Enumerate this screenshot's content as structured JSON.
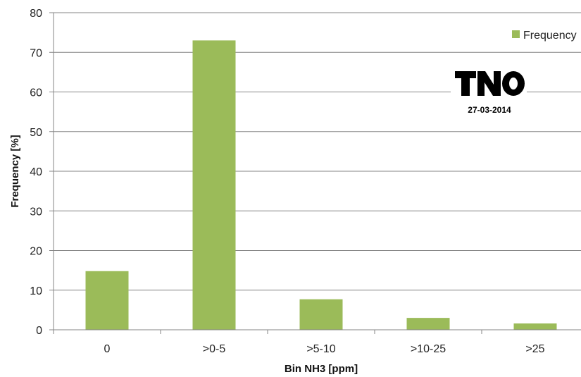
{
  "chart_data": {
    "type": "bar",
    "categories": [
      "0",
      ">0-5",
      ">5-10",
      ">10-25",
      ">25"
    ],
    "series": [
      {
        "name": "Frequency",
        "values": [
          14.8,
          73.0,
          7.7,
          3.0,
          1.6
        ]
      }
    ],
    "xlabel": "Bin NH3 [ppm]",
    "ylabel": "Frequency [%]",
    "ylim": [
      0,
      80
    ],
    "yticks": [
      0,
      10,
      20,
      30,
      40,
      50,
      60,
      70,
      80
    ],
    "grid": true,
    "legend_position": "top-right",
    "bar_color": "#9bbb59"
  },
  "logo": {
    "name": "TNO",
    "date": "27-03-2014"
  }
}
